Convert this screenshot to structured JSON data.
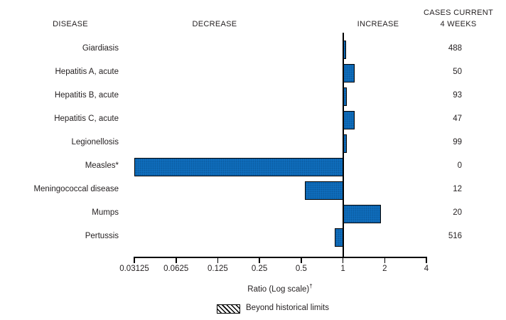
{
  "header": {
    "disease": "DISEASE",
    "decrease": "DECREASE",
    "increase": "INCREASE",
    "cases_line1": "CASES CURRENT",
    "cases_line2": "4 WEEKS"
  },
  "chart_data": {
    "type": "bar",
    "orientation": "horizontal",
    "scale": "log2",
    "xlabel_main": "Ratio (Log scale)",
    "xlabel_dagger": "†",
    "x_ticks": [
      0.03125,
      0.0625,
      0.125,
      0.25,
      0.5,
      1,
      2,
      4
    ],
    "x_tick_labels": [
      "0.03125",
      "0.0625",
      "0.125",
      "0.25",
      "0.5",
      "1",
      "2",
      "4"
    ],
    "xlim": [
      0.03125,
      4
    ],
    "baseline_ratio": 1,
    "rows": [
      {
        "disease": "Giardiasis",
        "ratio": 1.05,
        "cases": 488,
        "beyond_historical_limits": false
      },
      {
        "disease": "Hepatitis A, acute",
        "ratio": 1.22,
        "cases": 50,
        "beyond_historical_limits": false
      },
      {
        "disease": "Hepatitis B, acute",
        "ratio": 1.07,
        "cases": 93,
        "beyond_historical_limits": false
      },
      {
        "disease": "Hepatitis C, acute",
        "ratio": 1.21,
        "cases": 47,
        "beyond_historical_limits": false
      },
      {
        "disease": "Legionellosis",
        "ratio": 1.07,
        "cases": 99,
        "beyond_historical_limits": false
      },
      {
        "disease": "Measles*",
        "ratio": 0.03125,
        "cases": 0,
        "beyond_historical_limits": false
      },
      {
        "disease": "Meningococcal disease",
        "ratio": 0.53,
        "cases": 12,
        "beyond_historical_limits": false
      },
      {
        "disease": "Mumps",
        "ratio": 1.89,
        "cases": 20,
        "beyond_historical_limits": false
      },
      {
        "disease": "Pertussis",
        "ratio": 0.87,
        "cases": 516,
        "beyond_historical_limits": false
      }
    ],
    "legend": {
      "label": "Beyond historical limits",
      "pattern": "diagonal-hatch"
    }
  },
  "colors": {
    "bar_fill": "#1072c4",
    "bar_stipple": "#0a5a9e",
    "bar_border": "#000000",
    "axis": "#000000",
    "text": "#231f20"
  }
}
